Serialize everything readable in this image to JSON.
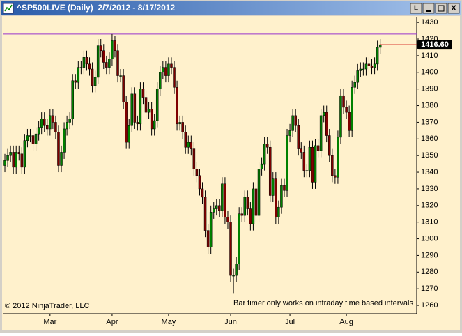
{
  "chart_data": {
    "type": "candlestick",
    "title": "^SP500LIVE (Daily)  2/7/2012 - 8/17/2012",
    "annotations": [
      "© 2012 NinjaTrader, LLC",
      "Bar timer only works on intraday time based intervals"
    ],
    "categories": [
      null,
      null,
      null,
      null,
      null,
      null,
      null,
      null,
      null,
      null,
      null,
      null,
      null,
      null,
      null,
      null,
      "Mar",
      null,
      null,
      null,
      null,
      null,
      null,
      null,
      null,
      null,
      null,
      null,
      null,
      null,
      null,
      null,
      null,
      null,
      null,
      null,
      null,
      null,
      "Apr",
      null,
      null,
      null,
      null,
      null,
      null,
      null,
      null,
      null,
      null,
      null,
      null,
      null,
      null,
      null,
      null,
      null,
      null,
      null,
      "May",
      null,
      null,
      null,
      null,
      null,
      null,
      null,
      null,
      null,
      null,
      null,
      null,
      null,
      null,
      null,
      null,
      null,
      null,
      null,
      null,
      null,
      "Jun",
      null,
      null,
      null,
      null,
      null,
      null,
      null,
      null,
      null,
      null,
      null,
      null,
      null,
      null,
      null,
      null,
      null,
      null,
      null,
      null,
      "Jul",
      null,
      null,
      null,
      null,
      null,
      null,
      null,
      null,
      null,
      null,
      null,
      null,
      null,
      null,
      null,
      null,
      null,
      null,
      null,
      "Aug",
      null,
      null,
      null,
      null,
      null,
      null,
      null,
      null,
      null,
      null,
      null,
      null
    ],
    "open": [
      1344,
      1347,
      1350,
      1352,
      1343,
      1352,
      1351,
      1343,
      1359,
      1362,
      1362,
      1357,
      1363,
      1367,
      1372,
      1368,
      1366,
      1374,
      1370,
      1364,
      1344,
      1352,
      1366,
      1370,
      1372,
      1395,
      1394,
      1403,
      1403,
      1409,
      1405,
      1402,
      1392,
      1397,
      1416,
      1413,
      1406,
      1403,
      1408,
      1419,
      1413,
      1398,
      1398,
      1382,
      1358,
      1368,
      1387,
      1370,
      1369,
      1390,
      1385,
      1376,
      1378,
      1366,
      1371,
      1390,
      1400,
      1403,
      1398,
      1405,
      1403,
      1391,
      1369,
      1370,
      1364,
      1355,
      1358,
      1354,
      1342,
      1338,
      1330,
      1325,
      1305,
      1295,
      1316,
      1318,
      1320,
      1317,
      1333,
      1313,
      1310,
      1278,
      1278,
      1285,
      1315,
      1314,
      1325,
      1318,
      1309,
      1330,
      1314,
      1342,
      1345,
      1357,
      1355,
      1326,
      1336,
      1313,
      1319,
      1332,
      1329,
      1362,
      1365,
      1374,
      1368,
      1354,
      1352,
      1341,
      1341,
      1355,
      1334,
      1356,
      1353,
      1374,
      1376,
      1362,
      1350,
      1338,
      1337,
      1361,
      1386,
      1379,
      1376,
      1365,
      1391,
      1394,
      1401,
      1402,
      1402,
      1405,
      1404,
      1403,
      1405,
      1415
    ],
    "high": [
      1351,
      1354,
      1356,
      1356,
      1356,
      1356,
      1355,
      1363,
      1366,
      1366,
      1366,
      1367,
      1371,
      1376,
      1376,
      1372,
      1378,
      1378,
      1374,
      1368,
      1356,
      1370,
      1374,
      1376,
      1399,
      1399,
      1407,
      1407,
      1413,
      1413,
      1409,
      1406,
      1401,
      1420,
      1420,
      1417,
      1410,
      1412,
      1423,
      1422,
      1417,
      1402,
      1402,
      1386,
      1372,
      1391,
      1391,
      1374,
      1394,
      1394,
      1389,
      1382,
      1382,
      1375,
      1394,
      1404,
      1407,
      1407,
      1409,
      1409,
      1407,
      1395,
      1374,
      1374,
      1368,
      1362,
      1362,
      1358,
      1346,
      1342,
      1334,
      1329,
      1309,
      1320,
      1322,
      1324,
      1324,
      1337,
      1337,
      1317,
      1314,
      1282,
      1289,
      1319,
      1319,
      1329,
      1329,
      1322,
      1334,
      1334,
      1346,
      1349,
      1361,
      1361,
      1359,
      1340,
      1340,
      1323,
      1336,
      1336,
      1366,
      1369,
      1378,
      1378,
      1372,
      1358,
      1356,
      1345,
      1359,
      1359,
      1360,
      1360,
      1378,
      1380,
      1380,
      1366,
      1354,
      1342,
      1365,
      1390,
      1390,
      1383,
      1380,
      1395,
      1398,
      1405,
      1406,
      1406,
      1409,
      1409,
      1408,
      1409,
      1419,
      1420
    ],
    "low": [
      1340,
      1343,
      1346,
      1339,
      1339,
      1347,
      1339,
      1339,
      1355,
      1358,
      1353,
      1353,
      1359,
      1363,
      1364,
      1362,
      1362,
      1366,
      1360,
      1340,
      1340,
      1348,
      1362,
      1366,
      1368,
      1390,
      1390,
      1399,
      1399,
      1401,
      1398,
      1388,
      1388,
      1393,
      1409,
      1402,
      1399,
      1399,
      1404,
      1409,
      1394,
      1394,
      1378,
      1354,
      1354,
      1364,
      1366,
      1365,
      1365,
      1381,
      1372,
      1372,
      1362,
      1362,
      1367,
      1386,
      1396,
      1394,
      1394,
      1399,
      1387,
      1365,
      1365,
      1360,
      1351,
      1351,
      1350,
      1338,
      1334,
      1326,
      1321,
      1301,
      1291,
      1291,
      1312,
      1314,
      1313,
      1313,
      1309,
      1306,
      1274,
      1267,
      1274,
      1281,
      1310,
      1310,
      1314,
      1305,
      1305,
      1310,
      1310,
      1338,
      1341,
      1351,
      1322,
      1322,
      1309,
      1309,
      1315,
      1325,
      1325,
      1358,
      1361,
      1364,
      1350,
      1348,
      1337,
      1337,
      1337,
      1330,
      1330,
      1349,
      1349,
      1370,
      1358,
      1346,
      1334,
      1333,
      1333,
      1357,
      1375,
      1372,
      1361,
      1361,
      1387,
      1390,
      1397,
      1398,
      1398,
      1400,
      1399,
      1399,
      1401,
      1411
    ],
    "close": [
      1347,
      1350,
      1352,
      1343,
      1352,
      1351,
      1343,
      1359,
      1362,
      1362,
      1357,
      1363,
      1367,
      1372,
      1368,
      1366,
      1374,
      1370,
      1364,
      1344,
      1352,
      1366,
      1370,
      1372,
      1395,
      1394,
      1403,
      1403,
      1409,
      1405,
      1402,
      1392,
      1397,
      1416,
      1413,
      1406,
      1403,
      1408,
      1419,
      1413,
      1398,
      1398,
      1382,
      1358,
      1368,
      1387,
      1370,
      1369,
      1390,
      1385,
      1376,
      1378,
      1366,
      1371,
      1390,
      1400,
      1403,
      1398,
      1405,
      1403,
      1391,
      1369,
      1370,
      1364,
      1355,
      1358,
      1354,
      1342,
      1338,
      1330,
      1325,
      1305,
      1295,
      1316,
      1318,
      1320,
      1317,
      1333,
      1313,
      1310,
      1278,
      1278,
      1285,
      1315,
      1314,
      1325,
      1318,
      1309,
      1330,
      1314,
      1342,
      1345,
      1357,
      1355,
      1326,
      1336,
      1313,
      1319,
      1332,
      1329,
      1362,
      1365,
      1374,
      1368,
      1354,
      1352,
      1341,
      1341,
      1355,
      1334,
      1356,
      1353,
      1374,
      1376,
      1362,
      1350,
      1338,
      1337,
      1361,
      1386,
      1379,
      1376,
      1365,
      1391,
      1394,
      1401,
      1402,
      1402,
      1405,
      1404,
      1403,
      1405,
      1415,
      1416.6
    ],
    "up_color": "#008000",
    "down_color": "#800000",
    "wick_color": "#000000",
    "high_line": {
      "value": 1423,
      "color": "#9933cc"
    },
    "last_price": {
      "value": 1416.6,
      "label": "1416.60",
      "color": "#cc0000"
    },
    "ylim": [
      1255,
      1433
    ],
    "yticks": [
      1260,
      1270,
      1280,
      1290,
      1300,
      1310,
      1320,
      1330,
      1340,
      1350,
      1360,
      1370,
      1380,
      1390,
      1400,
      1410,
      1420,
      1430
    ],
    "grid": false
  }
}
